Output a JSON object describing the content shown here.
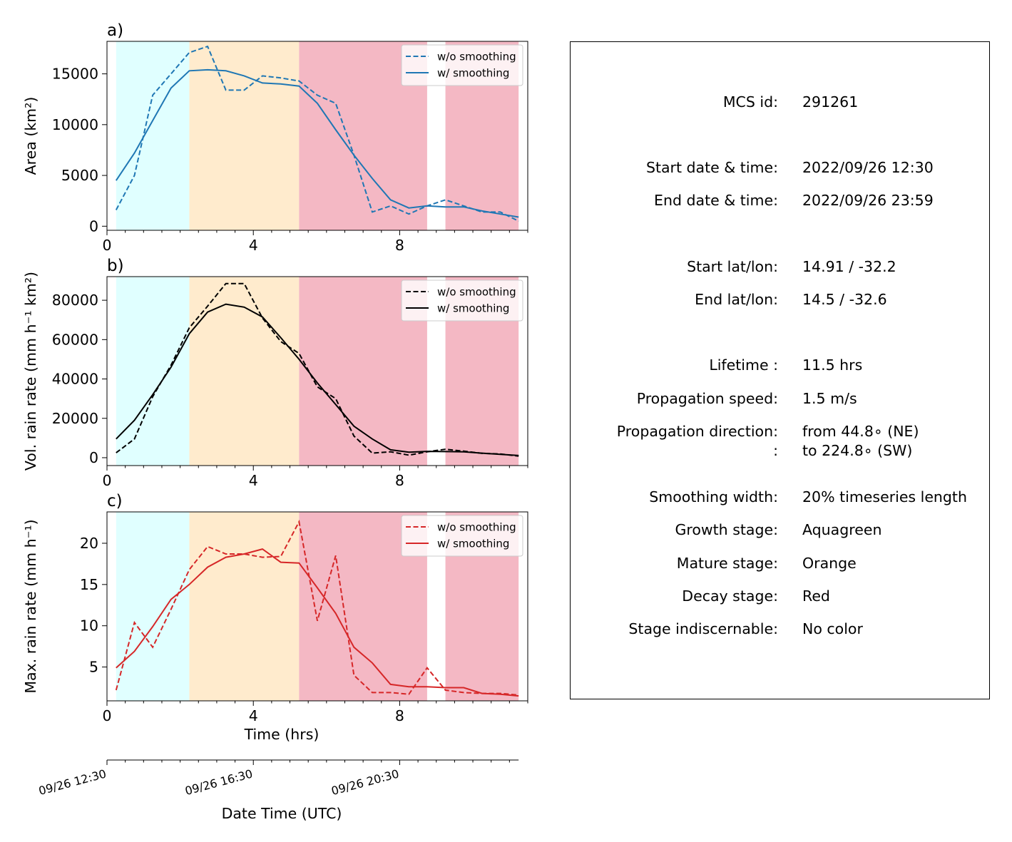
{
  "chart_data": [
    {
      "panel_label": "a)",
      "type": "line",
      "ylabel": "Area  (km²)",
      "xlim": [
        0,
        11.5
      ],
      "ylim": [
        -400,
        18200
      ],
      "xticks": [
        "0",
        "4",
        "8"
      ],
      "yticks": [
        "0",
        "5000",
        "10000",
        "15000"
      ],
      "color": "#1f77b4",
      "legend_position": "upper right",
      "series": [
        {
          "name": "w/o smoothing",
          "style": "dashed",
          "x": [
            0.25,
            0.75,
            1.25,
            1.75,
            2.25,
            2.75,
            3.25,
            3.75,
            4.25,
            4.75,
            5.25,
            5.75,
            6.25,
            6.75,
            7.25,
            7.75,
            8.25,
            8.75,
            9.25,
            9.75,
            10.25,
            10.75,
            11.25
          ],
          "values": [
            1600,
            5000,
            12900,
            15000,
            17100,
            17700,
            13400,
            13400,
            14800,
            14600,
            14300,
            12900,
            12100,
            7000,
            1400,
            2000,
            1200,
            2000,
            2600,
            2000,
            1400,
            1400,
            500
          ]
        },
        {
          "name": "w/ smoothing",
          "style": "solid",
          "x": [
            0.25,
            0.75,
            1.25,
            1.75,
            2.25,
            2.75,
            3.25,
            3.75,
            4.25,
            4.75,
            5.25,
            5.75,
            6.25,
            6.75,
            7.25,
            7.75,
            8.25,
            8.75,
            9.25,
            9.75,
            10.25,
            10.75,
            11.25
          ],
          "values": [
            4500,
            7200,
            10400,
            13600,
            15300,
            15400,
            15300,
            14800,
            14100,
            14000,
            13800,
            12100,
            9500,
            7000,
            4700,
            2600,
            1800,
            2000,
            1900,
            1900,
            1500,
            1200,
            900
          ]
        }
      ]
    },
    {
      "panel_label": "b)",
      "type": "line",
      "ylabel": "Vol. rain rate (mm h⁻¹ km²)",
      "xlim": [
        0,
        11.5
      ],
      "ylim": [
        -4000,
        92000
      ],
      "xticks": [
        "0",
        "4",
        "8"
      ],
      "yticks": [
        "0",
        "20000",
        "40000",
        "60000",
        "80000"
      ],
      "color": "#000000",
      "legend_position": "upper right",
      "series": [
        {
          "name": "w/o smoothing",
          "style": "dashed",
          "x": [
            0.25,
            0.75,
            1.25,
            1.75,
            2.25,
            2.75,
            3.25,
            3.75,
            4.25,
            4.75,
            5.25,
            5.75,
            6.25,
            6.75,
            7.25,
            7.75,
            8.25,
            8.75,
            9.25,
            9.75,
            10.25,
            10.75,
            11.25
          ],
          "values": [
            2500,
            9500,
            31000,
            47000,
            66000,
            77000,
            88500,
            88500,
            71000,
            59000,
            53000,
            36000,
            30000,
            11000,
            2300,
            3000,
            1300,
            3000,
            4300,
            3300,
            2200,
            1900,
            800
          ]
        },
        {
          "name": "w/ smoothing",
          "style": "solid",
          "x": [
            0.25,
            0.75,
            1.25,
            1.75,
            2.25,
            2.75,
            3.25,
            3.75,
            4.25,
            4.75,
            5.25,
            5.75,
            6.25,
            6.75,
            7.25,
            7.75,
            8.25,
            8.75,
            9.25,
            9.75,
            10.25,
            10.75,
            11.25
          ],
          "values": [
            9500,
            19000,
            32000,
            46000,
            63000,
            74000,
            78000,
            76500,
            71500,
            61000,
            50000,
            38000,
            27000,
            16000,
            9500,
            4000,
            2800,
            3200,
            3100,
            3000,
            2300,
            1700,
            1100
          ]
        }
      ]
    },
    {
      "panel_label": "c)",
      "type": "line",
      "ylabel": "Max. rain rate  (mm h⁻¹)",
      "xlabel": "Time (hrs)",
      "xlim": [
        0,
        11.5
      ],
      "ylim": [
        0.9,
        23.8
      ],
      "xticks": [
        "0",
        "4",
        "8"
      ],
      "yticks": [
        "5",
        "10",
        "15",
        "20"
      ],
      "color": "#d62728",
      "legend_position": "upper right",
      "series": [
        {
          "name": "w/o smoothing",
          "style": "dashed",
          "x": [
            0.25,
            0.75,
            1.25,
            1.75,
            2.25,
            2.75,
            3.25,
            3.75,
            4.25,
            4.75,
            5.25,
            5.75,
            6.25,
            6.75,
            7.25,
            7.75,
            8.25,
            8.75,
            9.25,
            9.75,
            10.25,
            10.75,
            11.25
          ],
          "values": [
            2.2,
            10.4,
            7.4,
            12.0,
            16.8,
            19.6,
            18.7,
            18.7,
            18.3,
            18.4,
            22.6,
            10.6,
            18.5,
            4.0,
            1.9,
            1.9,
            1.7,
            4.9,
            2.2,
            1.9,
            1.8,
            1.8,
            1.6
          ]
        },
        {
          "name": "w/ smoothing",
          "style": "solid",
          "x": [
            0.25,
            0.75,
            1.25,
            1.75,
            2.25,
            2.75,
            3.25,
            3.75,
            4.25,
            4.75,
            5.25,
            5.75,
            6.25,
            6.75,
            7.25,
            7.75,
            8.25,
            8.75,
            9.25,
            9.75,
            10.25,
            10.75,
            11.25
          ],
          "values": [
            4.9,
            6.9,
            9.9,
            13.2,
            15.0,
            17.1,
            18.3,
            18.7,
            19.3,
            17.7,
            17.6,
            14.6,
            11.5,
            7.4,
            5.5,
            2.9,
            2.6,
            2.6,
            2.5,
            2.5,
            1.8,
            1.7,
            1.5
          ]
        }
      ]
    }
  ],
  "stage_bands": [
    {
      "stage": "growth",
      "x0": 0.25,
      "x1": 2.25,
      "color": "#e0ffff"
    },
    {
      "stage": "mature",
      "x0": 2.25,
      "x1": 5.25,
      "color": "#ffebcd"
    },
    {
      "stage": "decay",
      "x0": 5.25,
      "x1": 8.75,
      "color": "#f4b8c4"
    },
    {
      "stage": "decay",
      "x0": 9.25,
      "x1": 11.25,
      "color": "#f4b8c4"
    }
  ],
  "datetime_axis": {
    "label": "Date Time (UTC)",
    "ticks": [
      {
        "x": 0,
        "label": "09/26 12:30"
      },
      {
        "x": 4,
        "label": "09/26 16:30"
      },
      {
        "x": 8,
        "label": "09/26 20:30"
      }
    ]
  },
  "info": {
    "rows": [
      {
        "label": "MCS id:",
        "value": "291261"
      },
      {
        "label": "Start date & time:",
        "value": "2022/09/26 12:30"
      },
      {
        "label": "End date & time:",
        "value": "2022/09/26 23:59"
      },
      {
        "label": "Start lat/lon:",
        "value": "14.91 / -32.2"
      },
      {
        "label": "End lat/lon:",
        "value": "14.5 / -32.6"
      },
      {
        "label": "Lifetime :",
        "value": "11.5 hrs"
      },
      {
        "label": "Propagation speed:",
        "value": "1.5 m/s"
      },
      {
        "label": "Propagation direction:",
        "value": "from  44.8∘ (NE)"
      },
      {
        "label": ":",
        "value": "to   224.8∘ (SW)"
      },
      {
        "label": "Smoothing width:",
        "value": "20% timeseries length"
      },
      {
        "label": "Growth stage:",
        "value": "Aquagreen"
      },
      {
        "label": "Mature stage:",
        "value": "Orange"
      },
      {
        "label": "Decay stage:",
        "value": "Red"
      },
      {
        "label": "Stage indiscernable:",
        "value": "No color"
      }
    ]
  }
}
